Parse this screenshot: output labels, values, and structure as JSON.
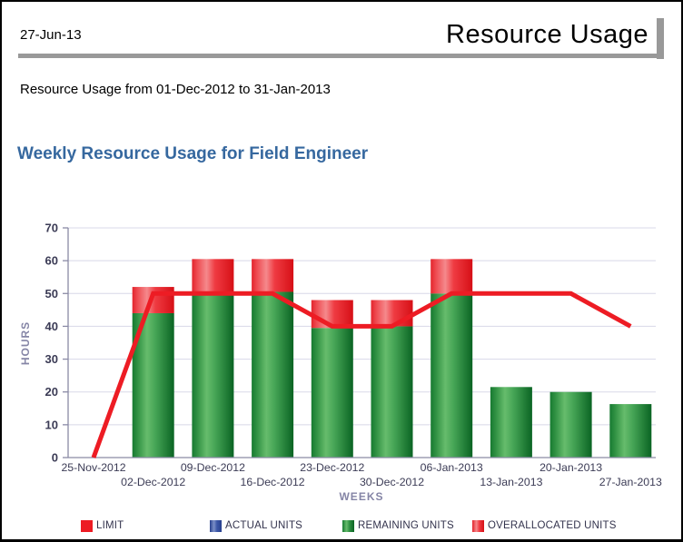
{
  "header": {
    "date": "27-Jun-13",
    "title": "Resource Usage"
  },
  "subtitle": "Resource Usage from 01-Dec-2012 to 31-Jan-2013",
  "section_title": "Weekly Resource Usage for Field Engineer",
  "chart_data": {
    "type": "bar",
    "subtype": "stacked-bars-with-overlay-line",
    "title": "Weekly Resource Usage for Field Engineer",
    "xlabel": "WEEKS",
    "ylabel": "HOURS",
    "ylim": [
      0,
      70
    ],
    "ytick_step": 10,
    "grid": true,
    "legend_position": "bottom",
    "categories": [
      "25-Nov-2012",
      "02-Dec-2012",
      "09-Dec-2012",
      "16-Dec-2012",
      "23-Dec-2012",
      "30-Dec-2012",
      "06-Jan-2013",
      "13-Jan-2013",
      "20-Jan-2013",
      "27-Jan-2013"
    ],
    "series": [
      {
        "name": "LIMIT",
        "type": "line",
        "color": "#ED1C24",
        "values": [
          0,
          50,
          50,
          50,
          40,
          40,
          50,
          50,
          50,
          40
        ]
      },
      {
        "name": "ACTUAL UNITS",
        "type": "bar",
        "color": "#3D58A8",
        "values": [
          0,
          0,
          0,
          0,
          0,
          0,
          0,
          0,
          0,
          0
        ]
      },
      {
        "name": "REMAINING UNITS",
        "type": "bar",
        "color": "#2F9042",
        "values": [
          0,
          44,
          49.5,
          50.5,
          39.5,
          40,
          50,
          21.5,
          20,
          16.3
        ]
      },
      {
        "name": "OVERALLOCATED UNITS",
        "type": "bar",
        "color": "#ED1C24",
        "values": [
          0,
          8,
          11,
          10,
          8.5,
          8,
          10.5,
          0,
          0,
          0
        ]
      }
    ]
  },
  "legend": {
    "items": [
      {
        "label": "LIMIT",
        "swatch": "solid-red"
      },
      {
        "label": "ACTUAL UNITS",
        "swatch": "grad-blue"
      },
      {
        "label": "REMAINING UNITS",
        "swatch": "grad-green"
      },
      {
        "label": "OVERALLOCATED UNITS",
        "swatch": "grad-red"
      }
    ]
  },
  "colors": {
    "heading_blue": "#36689F",
    "bar_green": "#2F9042",
    "bar_red": "#ED1C24",
    "limit_line_red": "#ED1C24",
    "axis": "#8A8AA5",
    "grid": "#D8D8E8",
    "axis_text": "#3B3B55",
    "axis_title_text": "#8585A6",
    "rule_gray": "#999999"
  }
}
